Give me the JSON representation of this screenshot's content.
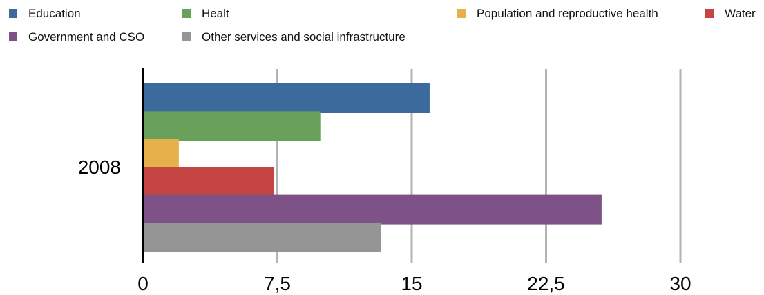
{
  "chart_data": {
    "type": "bar",
    "orientation": "horizontal",
    "title": "",
    "xlabel": "",
    "ylabel": "",
    "categories": [
      "2008"
    ],
    "series": [
      {
        "name": "Education",
        "values": [
          16
        ],
        "color": "#3d6a9c"
      },
      {
        "name": "Healt",
        "values": [
          9.9
        ],
        "color": "#6aa15a"
      },
      {
        "name": "Population and reproductive health",
        "values": [
          2
        ],
        "color": "#e8b04b"
      },
      {
        "name": "Water",
        "values": [
          7.3
        ],
        "color": "#c44541"
      },
      {
        "name": "Government and CSO",
        "values": [
          25.6
        ],
        "color": "#7e5286"
      },
      {
        "name": "Other services and social infrastructure",
        "values": [
          13.3
        ],
        "color": "#949594"
      }
    ],
    "xlim": [
      0,
      30
    ],
    "xticks": [
      0,
      7.5,
      15,
      22.5,
      30
    ],
    "xtick_labels": [
      "0",
      "7,5",
      "15",
      "22,5",
      "30"
    ],
    "grid": "vertical",
    "legend_position": "top"
  }
}
